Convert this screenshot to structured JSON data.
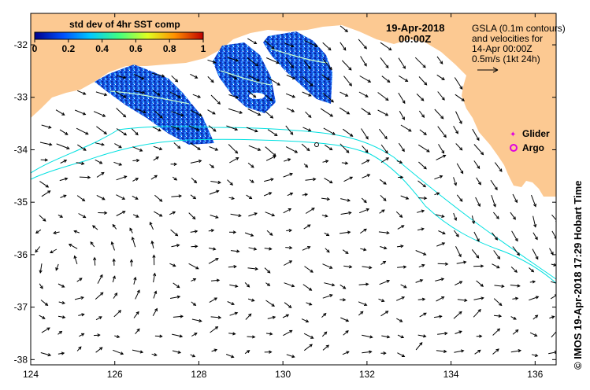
{
  "colorbar": {
    "title": "std dev of 4hr SST comp",
    "ticks": [
      "0",
      "0.2",
      "0.4",
      "0.6",
      "0.8",
      "1"
    ],
    "colors": [
      "#00008c",
      "#0050ff",
      "#00c8ff",
      "#40ff80",
      "#e0ff20",
      "#ff9000",
      "#c00000"
    ]
  },
  "date_label": {
    "line1": "19-Apr-2018",
    "line2": "00:00Z"
  },
  "info_text": {
    "line1": "GSLA (0.1m contours)",
    "line2": "and velocities for",
    "line3": "14-Apr 00:00Z",
    "line4": "0.5m/s (1kt 24h)"
  },
  "legend": {
    "glider": {
      "label": "Glider",
      "color": "#e000e0"
    },
    "argo": {
      "label": "Argo",
      "color": "#e000e0"
    }
  },
  "credit": "© IMOS 19-Apr-2018 17:29 Hobart Time",
  "axes": {
    "lon_min": 124,
    "lon_max": 136.5,
    "lat_min": -38.1,
    "lat_max": -31.4,
    "x_ticks": [
      "124",
      "126",
      "128",
      "130",
      "132",
      "134",
      "136"
    ],
    "y_ticks": [
      "-32",
      "-33",
      "-34",
      "-35",
      "-36",
      "-37",
      "-38"
    ]
  },
  "colors": {
    "land": "#fcc992",
    "contour": "#00e0e0",
    "arrow": "#000000",
    "frame": "#000000"
  }
}
